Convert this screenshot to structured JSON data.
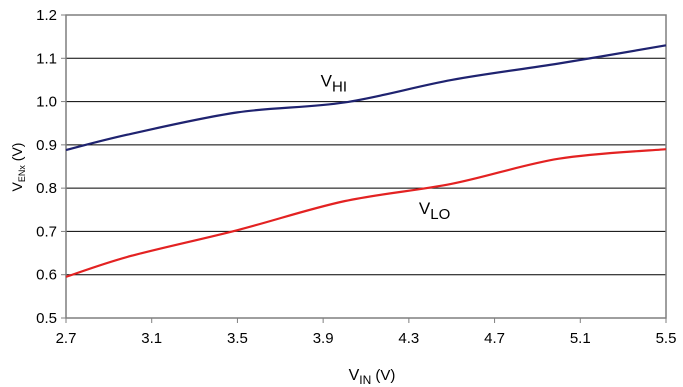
{
  "chart_data": {
    "type": "line",
    "title": "",
    "xlabel": {
      "main": "V",
      "sub": "IN",
      "suffix": " (V)"
    },
    "ylabel": {
      "main": "V",
      "sub": "ENx",
      "suffix": " (V)"
    },
    "xlim": [
      2.7,
      5.5
    ],
    "ylim": [
      0.5,
      1.2
    ],
    "xticks": [
      "2.7",
      "3.1",
      "3.5",
      "3.9",
      "4.3",
      "4.7",
      "5.1",
      "5.5"
    ],
    "yticks": [
      "0.5",
      "0.6",
      "0.7",
      "0.8",
      "0.9",
      "1.0",
      "1.1",
      "1.2"
    ],
    "grid": {
      "horizontal": true,
      "vertical": false
    },
    "legend": "none",
    "series": [
      {
        "name": {
          "main": "V",
          "sub": "HI"
        },
        "color": "#1f2370",
        "x": [
          2.7,
          3.0,
          3.5,
          4.0,
          4.5,
          5.0,
          5.5
        ],
        "y": [
          0.888,
          0.925,
          0.975,
          0.998,
          1.05,
          1.088,
          1.13
        ],
        "label_at": [
          3.95,
          1.035
        ]
      },
      {
        "name": {
          "main": "V",
          "sub": "LO"
        },
        "color": "#e32222",
        "x": [
          2.7,
          3.0,
          3.5,
          4.0,
          4.5,
          5.0,
          5.5
        ],
        "y": [
          0.595,
          0.643,
          0.703,
          0.77,
          0.81,
          0.868,
          0.89
        ],
        "label_at": [
          4.42,
          0.74
        ]
      }
    ]
  }
}
